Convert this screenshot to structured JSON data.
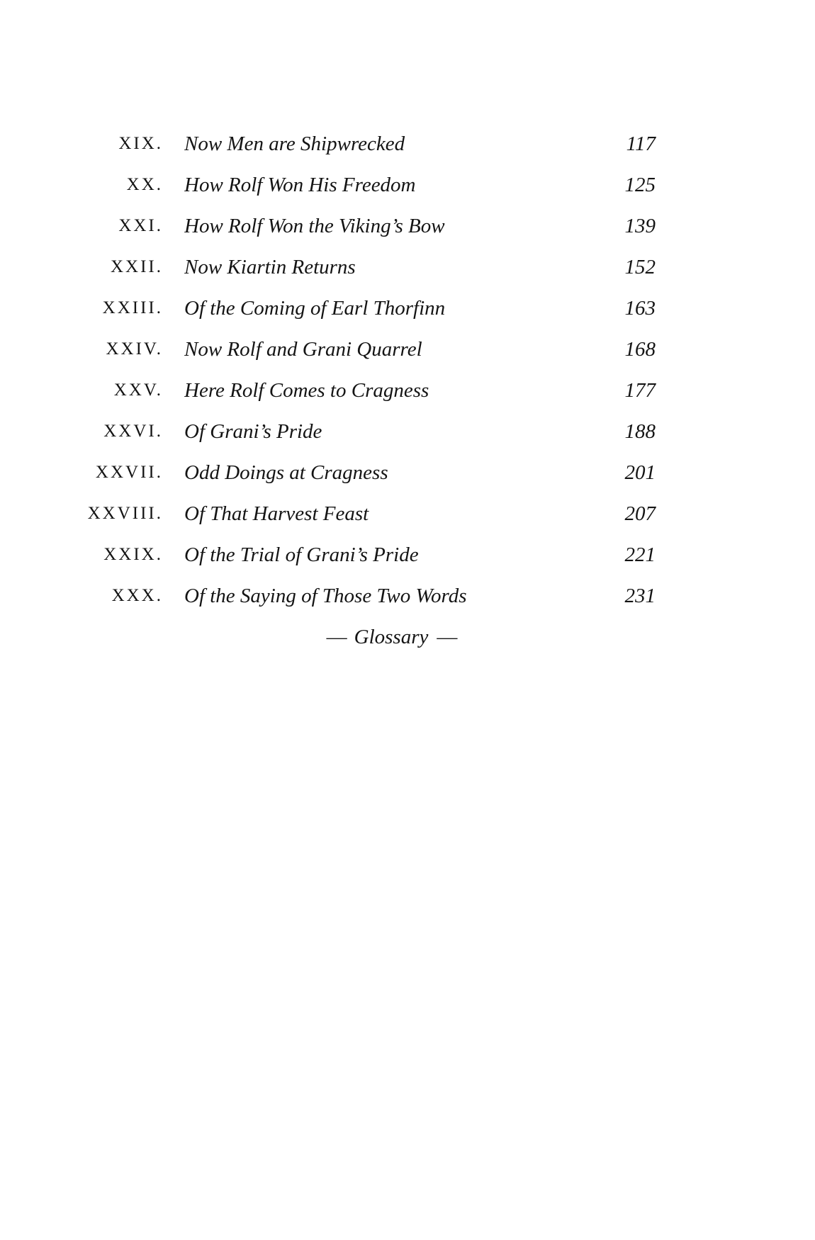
{
  "page": {
    "background": "#ffffff",
    "text_color": "#141414"
  },
  "toc": {
    "entries": [
      {
        "numeral": "XIX.",
        "title": "Now Men are Shipwrecked",
        "page": "117"
      },
      {
        "numeral": "XX.",
        "title": "How Rolf Won His Freedom",
        "page": "125"
      },
      {
        "numeral": "XXI.",
        "title": "How Rolf Won the Viking’s Bow",
        "page": "139"
      },
      {
        "numeral": "XXII.",
        "title": "Now Kiartin Returns",
        "page": "152"
      },
      {
        "numeral": "XXIII.",
        "title": "Of the Coming of Earl Thorfinn",
        "page": "163"
      },
      {
        "numeral": "XXIV.",
        "title": "Now Rolf and Grani Quarrel",
        "page": "168"
      },
      {
        "numeral": "XXV.",
        "title": "Here Rolf Comes to Cragness",
        "page": "177"
      },
      {
        "numeral": "XXVI.",
        "title": "Of Grani’s Pride",
        "page": "188"
      },
      {
        "numeral": "XXVII.",
        "title": "Odd Doings at Cragness",
        "page": "201"
      },
      {
        "numeral": "XXVIII.",
        "title": "Of That Harvest Feast",
        "page": "207"
      },
      {
        "numeral": "XXIX.",
        "title": "Of the Trial of Grani’s Pride",
        "page": "221"
      },
      {
        "numeral": "XXX.",
        "title": "Of the Saying of Those Two Words",
        "page": "231"
      }
    ],
    "glossary": {
      "dash": "—",
      "label": "Glossary"
    }
  }
}
